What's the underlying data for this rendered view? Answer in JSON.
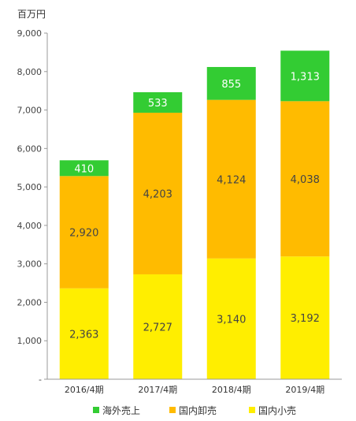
{
  "chart_data": {
    "type": "bar",
    "stacked": true,
    "unit_label": "百万円",
    "categories": [
      "2016/4期",
      "2017/4期",
      "2018/4期",
      "2019/4期"
    ],
    "series": [
      {
        "name": "国内小売",
        "color": "#ffee00",
        "values": [
          2363,
          2727,
          3140,
          3192
        ]
      },
      {
        "name": "国内卸売",
        "color": "#ffbb00",
        "values": [
          2920,
          4203,
          4124,
          4038
        ]
      },
      {
        "name": "海外売上",
        "color": "#33cc33",
        "values": [
          410,
          533,
          855,
          1313
        ]
      }
    ],
    "legend_order": [
      "海外売上",
      "国内卸売",
      "国内小売"
    ],
    "ylim": [
      0,
      9000
    ],
    "yticks": [
      "-",
      "1,000",
      "2,000",
      "3,000",
      "4,000",
      "5,000",
      "6,000",
      "7,000",
      "8,000",
      "9,000"
    ],
    "data_labels": [
      [
        "2,363",
        "2,727",
        "3,140",
        "3,192"
      ],
      [
        "2,920",
        "4,203",
        "4,124",
        "4,038"
      ],
      [
        "410",
        "533",
        "855",
        "1,313"
      ]
    ],
    "legend_position": "bottom",
    "grid": false
  }
}
